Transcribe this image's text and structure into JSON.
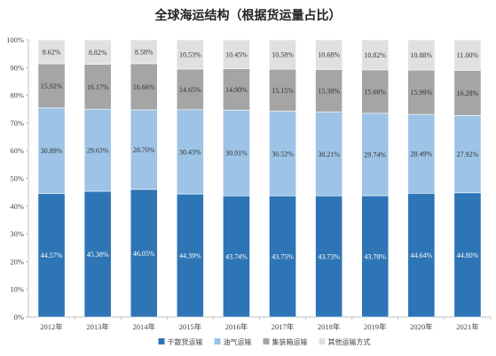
{
  "chart_data": {
    "type": "bar",
    "stacked": true,
    "title": "全球海运结构（根据货运量占比）",
    "categories": [
      "2012年",
      "2013年",
      "2014年",
      "2015年",
      "2016年",
      "2017年",
      "2018年",
      "2019年",
      "2020年",
      "2021年"
    ],
    "series": [
      {
        "name": "干散货运输",
        "color": "#2e75b6",
        "label_color": "#ffffff",
        "values": [
          44.57,
          45.38,
          46.05,
          44.39,
          43.74,
          43.75,
          43.73,
          43.78,
          44.64,
          44.8
        ],
        "labels": [
          "44.57%",
          "45.38%",
          "46.05%",
          "44.39%",
          "43.74%",
          "43.75%",
          "43.73%",
          "43.78%",
          "44.64%",
          "44.80%"
        ]
      },
      {
        "name": "油气运输",
        "color": "#9dc3e6",
        "label_color": "#333333",
        "values": [
          30.89,
          29.63,
          28.7,
          30.43,
          30.91,
          30.52,
          30.21,
          29.74,
          28.49,
          27.92
        ],
        "labels": [
          "30.89%",
          "29.63%",
          "28.70%",
          "30.43%",
          "30.91%",
          "30.52%",
          "30.21%",
          "29.74%",
          "28.49%",
          "27.92%"
        ]
      },
      {
        "name": "集装箱运输",
        "color": "#a5a5a5",
        "label_color": "#333333",
        "values": [
          15.92,
          16.17,
          16.66,
          14.65,
          14.9,
          15.15,
          15.38,
          15.66,
          15.99,
          16.28
        ],
        "labels": [
          "15.92%",
          "16.17%",
          "16.66%",
          "14.65%",
          "14.90%",
          "15.15%",
          "15.38%",
          "15.66%",
          "15.99%",
          "16.28%"
        ]
      },
      {
        "name": "其他运输方式",
        "color": "#e0e0e0",
        "label_color": "#333333",
        "values": [
          8.62,
          8.82,
          8.58,
          10.53,
          10.45,
          10.58,
          10.68,
          10.82,
          10.88,
          11.0
        ],
        "labels": [
          "8.62%",
          "8.82%",
          "8.58%",
          "10.53%",
          "10.45%",
          "10.58%",
          "10.68%",
          "10.82%",
          "10.88%",
          "11.00%"
        ]
      }
    ],
    "ylim": [
      0,
      100
    ],
    "yticks": [
      "0%",
      "10%",
      "20%",
      "30%",
      "40%",
      "50%",
      "60%",
      "70%",
      "80%",
      "90%",
      "100%"
    ],
    "grid": false,
    "legend_position": "bottom"
  }
}
